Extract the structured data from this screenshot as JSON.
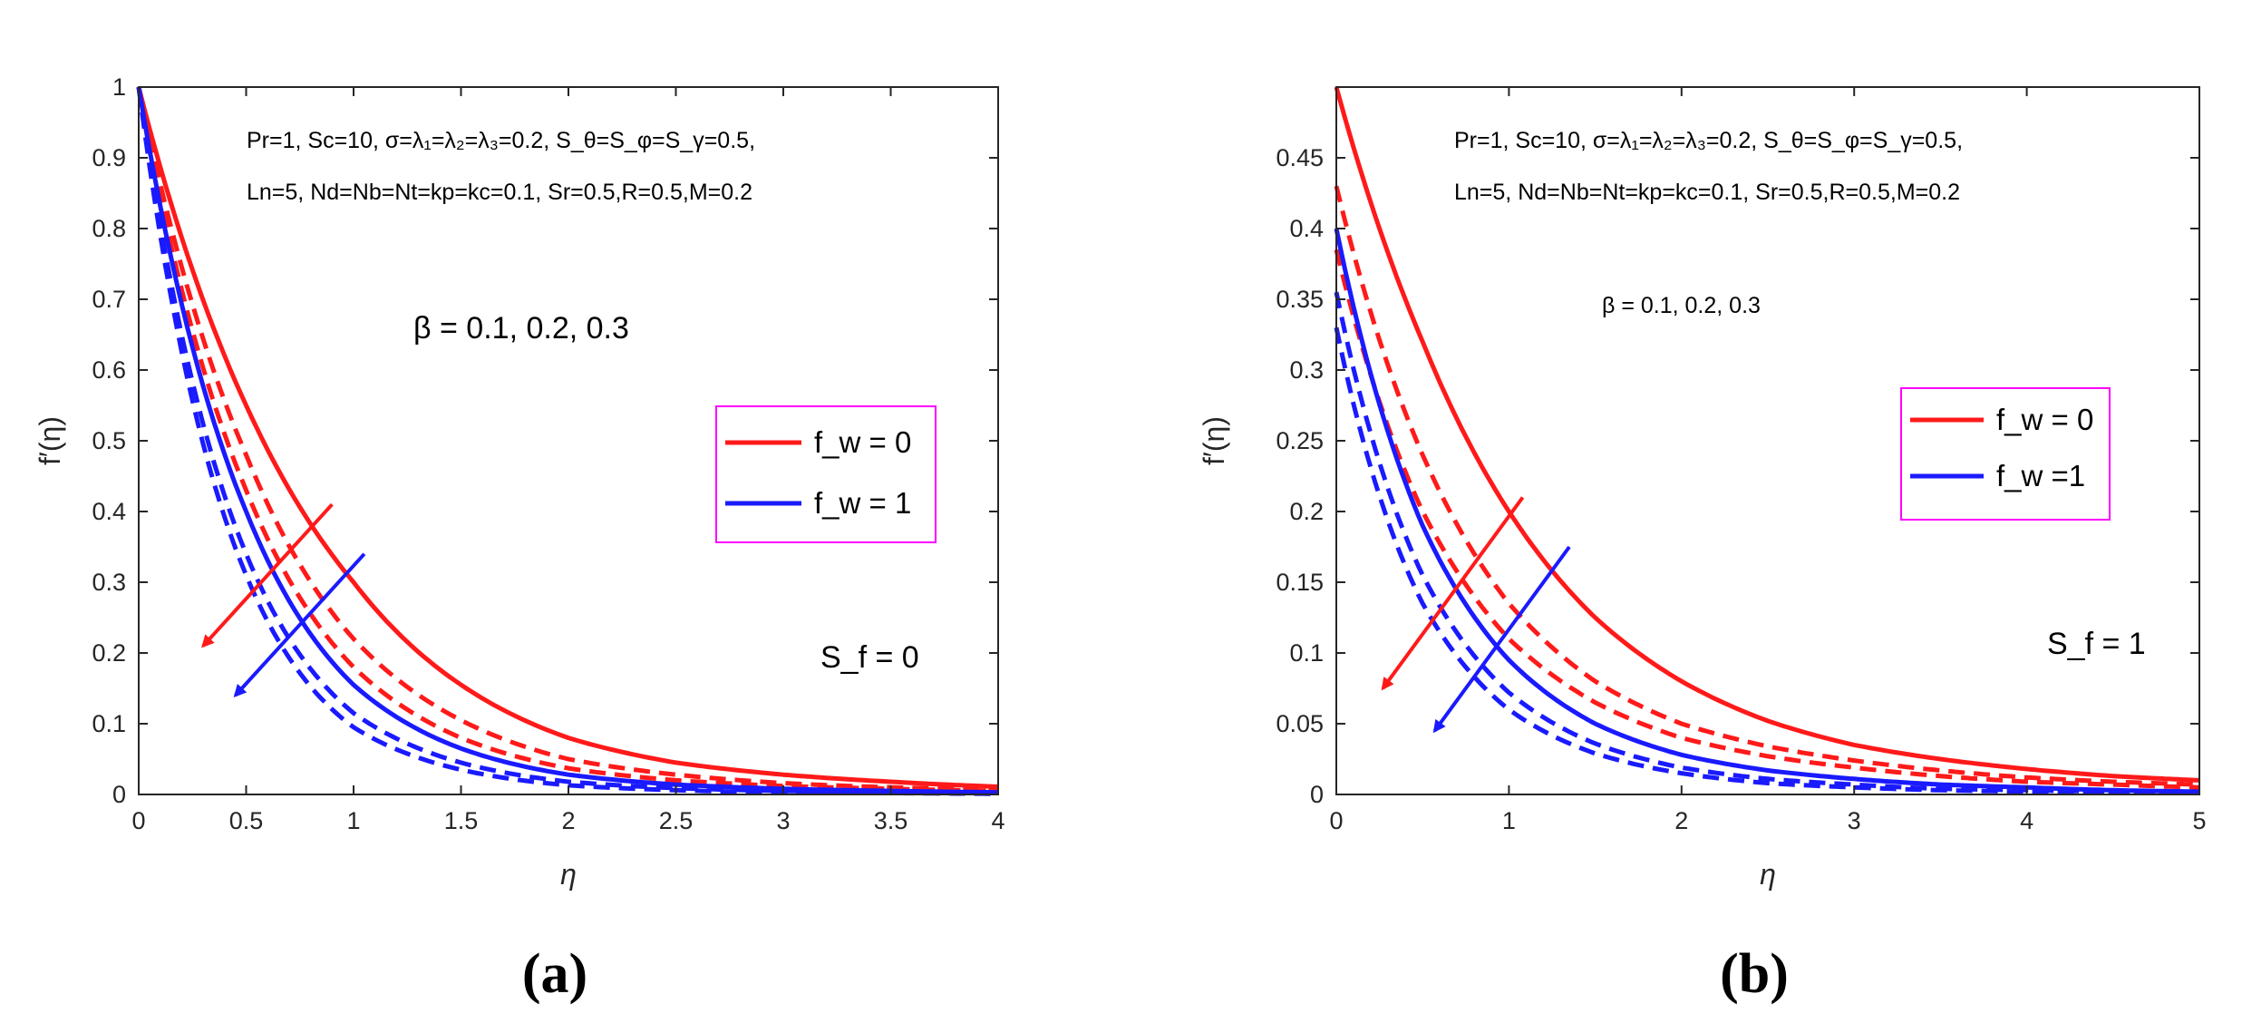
{
  "colors": {
    "red": "#ff1a1a",
    "blue": "#1a1aff",
    "legend_border": "#ff00ff",
    "axis": "#262626"
  },
  "panels": [
    {
      "label": "(a)",
      "xlabel": "η",
      "ylabel": "f′(η)",
      "param_line1": "Pr=1, Sc=10, σ=λ₁=λ₂=λ₃=0.2, S_θ=S_φ=S_γ=0.5,",
      "param_line2": "Ln=5, Nd=Nb=Nt=kp=kc=0.1, Sr=0.5,R=0.5,M=0.2",
      "beta_text": "β = 0.1, 0.2, 0.3",
      "sf_text": "S_f = 0",
      "legend": [
        "f_w = 0",
        "f_w = 1"
      ]
    },
    {
      "label": "(b)",
      "xlabel": "η",
      "ylabel": "f′(η)",
      "param_line1": "Pr=1, Sc=10, σ=λ₁=λ₂=λ₃=0.2, S_θ=S_φ=S_γ=0.5,",
      "param_line2": "Ln=5, Nd=Nb=Nt=kp=kc=0.1, Sr=0.5,R=0.5,M=0.2",
      "beta_text": "β = 0.1, 0.2, 0.3",
      "sf_text": "S_f = 1",
      "legend": [
        "f_w = 0",
        "f_w =1"
      ]
    }
  ],
  "chart_data": [
    {
      "type": "line",
      "xlabel": "η",
      "ylabel": "f′(η)",
      "xlim": [
        0,
        4
      ],
      "ylim": [
        0,
        1
      ],
      "xticks": [
        0,
        0.5,
        1,
        1.5,
        2,
        2.5,
        3,
        3.5,
        4
      ],
      "xtick_labels": [
        "0",
        "0.5",
        "1",
        "1.5",
        "2",
        "2.5",
        "3",
        "3.5",
        "4"
      ],
      "yticks": [
        0,
        0.1,
        0.2,
        0.3,
        0.4,
        0.5,
        0.6,
        0.7,
        0.8,
        0.9,
        1
      ],
      "ytick_labels": [
        "0",
        "0.1",
        "0.2",
        "0.3",
        "0.4",
        "0.5",
        "0.6",
        "0.7",
        "0.8",
        "0.9",
        "1"
      ],
      "x": [
        0,
        0.5,
        1,
        1.5,
        2,
        2.5,
        3,
        3.5,
        4
      ],
      "series": [
        {
          "name": "f_w = 0, β = 0.1",
          "color": "red",
          "dash": "solid",
          "values": [
            1.0,
            0.55,
            0.3,
            0.155,
            0.08,
            0.045,
            0.028,
            0.018,
            0.011
          ]
        },
        {
          "name": "f_w = 0, β = 0.2",
          "color": "red",
          "dash": "dashed",
          "values": [
            1.0,
            0.48,
            0.22,
            0.105,
            0.05,
            0.028,
            0.016,
            0.01,
            0.007
          ]
        },
        {
          "name": "f_w = 0, β = 0.3",
          "color": "red",
          "dash": "dashed",
          "values": [
            1.0,
            0.43,
            0.18,
            0.08,
            0.037,
            0.02,
            0.012,
            0.008,
            0.005
          ]
        },
        {
          "name": "f_w = 1, β = 0.1",
          "color": "blue",
          "dash": "solid",
          "values": [
            1.0,
            0.4,
            0.155,
            0.065,
            0.028,
            0.014,
            0.008,
            0.005,
            0.003
          ]
        },
        {
          "name": "f_w = 1, β = 0.2",
          "color": "blue",
          "dash": "dashed",
          "values": [
            1.0,
            0.34,
            0.115,
            0.045,
            0.018,
            0.009,
            0.005,
            0.003,
            0.002
          ]
        },
        {
          "name": "f_w = 1, β = 0.3",
          "color": "blue",
          "dash": "dashed",
          "values": [
            1.0,
            0.31,
            0.095,
            0.035,
            0.013,
            0.006,
            0.003,
            0.002,
            0.001
          ]
        }
      ],
      "arrows": [
        {
          "color": "red",
          "from": [
            0.9,
            0.41
          ],
          "to": [
            0.3,
            0.21
          ]
        },
        {
          "color": "blue",
          "from": [
            1.05,
            0.34
          ],
          "to": [
            0.45,
            0.14
          ]
        }
      ],
      "legend_position": "center-right"
    },
    {
      "type": "line",
      "xlabel": "η",
      "ylabel": "f′(η)",
      "xlim": [
        0,
        5
      ],
      "ylim": [
        0,
        0.5
      ],
      "xticks": [
        0,
        1,
        2,
        3,
        4,
        5
      ],
      "xtick_labels": [
        "0",
        "1",
        "2",
        "3",
        "4",
        "5"
      ],
      "yticks": [
        0,
        0.05,
        0.1,
        0.15,
        0.2,
        0.25,
        0.3,
        0.35,
        0.4,
        0.45
      ],
      "ytick_labels": [
        "0",
        "0.05",
        "0.1",
        "0.15",
        "0.2",
        "0.25",
        "0.3",
        "0.35",
        "0.4",
        "0.45"
      ],
      "x": [
        0,
        0.5,
        1,
        1.5,
        2,
        2.5,
        3,
        3.5,
        4,
        4.5,
        5
      ],
      "series": [
        {
          "name": "f_w = 0, β = 0.1",
          "color": "red",
          "dash": "solid",
          "values": [
            0.5,
            0.32,
            0.2,
            0.125,
            0.08,
            0.052,
            0.035,
            0.025,
            0.018,
            0.013,
            0.01
          ]
        },
        {
          "name": "f_w = 0, β = 0.2",
          "color": "red",
          "dash": "dashed",
          "values": [
            0.43,
            0.24,
            0.135,
            0.08,
            0.05,
            0.034,
            0.024,
            0.017,
            0.012,
            0.009,
            0.007
          ]
        },
        {
          "name": "f_w = 0, β = 0.3",
          "color": "red",
          "dash": "dashed",
          "values": [
            0.385,
            0.2,
            0.11,
            0.065,
            0.04,
            0.027,
            0.019,
            0.013,
            0.009,
            0.007,
            0.005
          ]
        },
        {
          "name": "f_w = 1, β = 0.1",
          "color": "blue",
          "dash": "solid",
          "values": [
            0.4,
            0.19,
            0.095,
            0.05,
            0.028,
            0.017,
            0.011,
            0.007,
            0.005,
            0.003,
            0.002
          ]
        },
        {
          "name": "f_w = 1, β = 0.2",
          "color": "blue",
          "dash": "dashed",
          "values": [
            0.355,
            0.155,
            0.072,
            0.036,
            0.019,
            0.011,
            0.007,
            0.004,
            0.003,
            0.002,
            0.001
          ]
        },
        {
          "name": "f_w = 1, β = 0.3",
          "color": "blue",
          "dash": "dashed",
          "values": [
            0.33,
            0.135,
            0.06,
            0.029,
            0.015,
            0.008,
            0.005,
            0.003,
            0.002,
            0.001,
            0.001
          ]
        }
      ],
      "arrows": [
        {
          "color": "red",
          "from": [
            1.08,
            0.21
          ],
          "to": [
            0.27,
            0.075
          ]
        },
        {
          "color": "blue",
          "from": [
            1.35,
            0.175
          ],
          "to": [
            0.57,
            0.045
          ]
        }
      ],
      "legend_position": "center-right"
    }
  ]
}
